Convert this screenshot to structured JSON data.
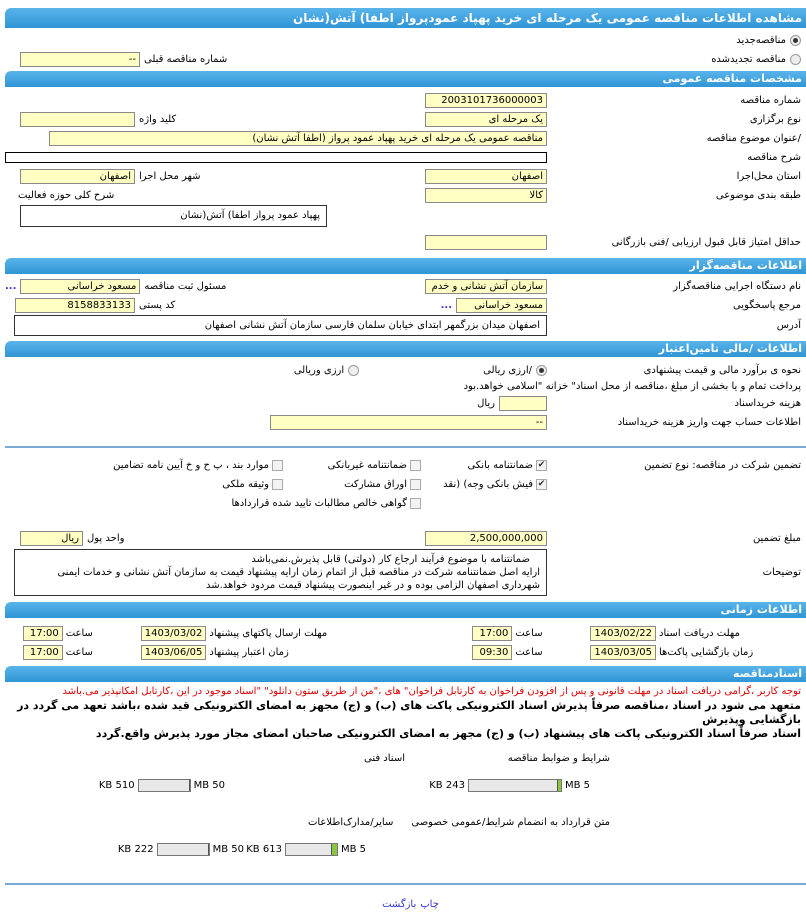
{
  "title": "مشاهده اطلاعات مناقصه  عمومی یک مرحله ای خرید پهپاد عمودپرواز اطفا) آتش(نشان",
  "renewal": {
    "new_label": "مناقصه‌جدید",
    "renewed_label": "مناقصه تجدیدشده",
    "new_selected": true,
    "prev_number_label": "شماره  مناقصه قبلی",
    "prev_number": "--"
  },
  "general": {
    "header": "مشخصات مناقصه عمومی",
    "number_label": "شماره مناقصه",
    "number": "2003101736000003",
    "type_label": "نوع برگزاری",
    "type": "یک مرحله ای",
    "keyword_label": "کلید واژه",
    "keyword": "",
    "subject_label": "/عنوان  موضوع مناقصه",
    "subject": "مناقصه عمومی یک مرحله ای خرید پهپاد عمود پرواز (اطفا آتش نشان)",
    "desc_label": "شرح مناقصه",
    "desc": "",
    "province_label": "استان محل‌اجرا",
    "province": "اصفهان",
    "city_label": "شهر محل اجرا",
    "city": "اصفهان",
    "category_label": "طبقه بندی موضوعی",
    "category": "کالا",
    "activity_label": "شرح  کلی  حوزه فعالیت",
    "activity": "پهپاد عمود پرواز اطفا) آتش(نشان",
    "min_score_label": "حداقل  امتیاز قابل  قبول  ارزیابی /فنی بازرگانی",
    "min_score": ""
  },
  "organizer": {
    "header": "اطلاعات مناقصه‌گزار",
    "org_label": "نام  دستگاه  اجرایی  مناقصه‌گزار",
    "org": "سازمان آتش نشانی و خدم",
    "registrar_label": "مسئول  ثبت مناقصه",
    "registrar": "مسعود خراسانی",
    "ref_label": "مرجع پاسخگویی",
    "ref": "مسعود خراسانی",
    "postal_label": "کد  پستی",
    "postal": "8158833133",
    "address_label": "آدرس",
    "address": "اصفهان  میدان  بزرگمهر  ابتدای  خیابان  سلمان  فارسی  سازمان آتش نشانی اصفهان",
    "more": "..."
  },
  "finance": {
    "header": "اطلاعات /مالی تامین‌اعتبار",
    "method_label": "نحوه ی برآورد مالی و قیمت پیشنهادی",
    "rial_label": "/ارزی ریالی",
    "fx_label": "ارزی وریالی",
    "rial_selected": true,
    "notice": "پرداخت تمام و یا بخشی از مبلغ  ،مناقصه از محل اسناد\" خزانه \"اسلامی خواهد.بود",
    "doc_cost_label": "هزینه خریداسناد",
    "doc_cost": "",
    "doc_cost_unit": "ریال",
    "account_label": "اطلاعات حساب جهت واریز  هزینه خریداسناد",
    "account": "--"
  },
  "guarantee": {
    "label": "تضمین شرکت در مناقصه:   نوع    تضمین",
    "options": [
      {
        "label": "ضمانتنامه  بانکی",
        "checked": true
      },
      {
        "label": "ضمانتنامه  غیربانکی",
        "checked": false
      },
      {
        "label": "موارد  بند ، پ ح و خ آیین نامه تضامین",
        "checked": false
      },
      {
        "label": "فیش  بانکی وجه) (نقد",
        "checked": true
      },
      {
        "label": "اوراق  مشارکت",
        "checked": false
      },
      {
        "label": "وثیقه ملکی",
        "checked": false
      },
      {
        "label": "گواهی  خالص مطالبات تایید شده قراردادها",
        "checked": false
      }
    ],
    "amount_label": "مبلغ تضمین",
    "amount": "2,500,000,000",
    "currency_label": "واحد پول",
    "currency": "ریال",
    "notes_label": "توضیحات",
    "notes": [
      "ضمانتنامه با موضوع فرآیند ارجاع کار  (دولتی) قابل پذیرش.نمی‌باشد",
      "ارایه اصل  ضمانتنامه شرکت در مناقصه قبل از اتمام زمان ارایه   پیشنهاد قیمت به سازمان آتش نشانی و خدمات ایمنی",
      "شهرداری  اصفهان الزامی بوده و در غیر  اینصورت  پیشنهاد قیمت مردود خواهد.شد"
    ]
  },
  "timing": {
    "header": "اطلاعات زمانی",
    "time_label": "ساعت",
    "doc_deadline_label": "مهلت  دریافت اسناد",
    "doc_deadline": "1403/02/22",
    "doc_deadline_time": "17:00",
    "submit_label": "مهلت      ارسال  پاکتهای پیشنهاد",
    "submit_date": "1403/03/02",
    "submit_time": "17:00",
    "opening_label": "زمان  بازگشایی پاکت‌ها",
    "opening_date": "1403/03/05",
    "opening_time": "09:30",
    "validity_label": "زمان      اعتبار پیشنهاد",
    "validity_date": "1403/06/05",
    "validity_time": "17:00"
  },
  "documents": {
    "header": "اسنادمناقصه",
    "warning": "توجه کاربر ،گرامی دریافت اسناد در مهلت قانونی و پس از افزودن فراخوان به کارتابل فراخوان\" های ،\"من از طریق ستون دانلود\" \"اسناد موجود در این ،کارتابل امکانپذیر می.باشد",
    "commit": [
      "متعهد می شود در اسناد ،مناقصه صرفاً پذیرش اسناد الکترونیکی پاکت های (ب) و (ج) مجهز به امضای الکترونیکی قید شده ،باشد تعهد می گردد در بازگشایی وپذیرش",
      "اسناد صرفاً اسناد الکترونیکی پاکت های پیشنهاد (ب) و (ج) مجهز به امضای الکترونیکی صاحبان امضای مجاز مورد پذیرش واقع.گردد"
    ],
    "files": [
      {
        "label": "شرایط و  ضوابط مناقصه",
        "size": "243 KB",
        "max": "5 MB",
        "fraction": 0.047
      },
      {
        "label": "اسناد فنی",
        "size": "510 KB",
        "max": "50 MB",
        "fraction": 0.01
      },
      {
        "label": "متن قرارداد به  انضمام شرایط/عمومی  خصوصی",
        "size": "613 KB",
        "max": "5 MB",
        "fraction": 0.12
      },
      {
        "label": "سایر/مدارک‌اطلاعات",
        "size": "222 KB",
        "max": "50 MB",
        "fraction": 0.004
      }
    ]
  },
  "footer": {
    "print": "چاپ",
    "back": "بازگشت"
  }
}
